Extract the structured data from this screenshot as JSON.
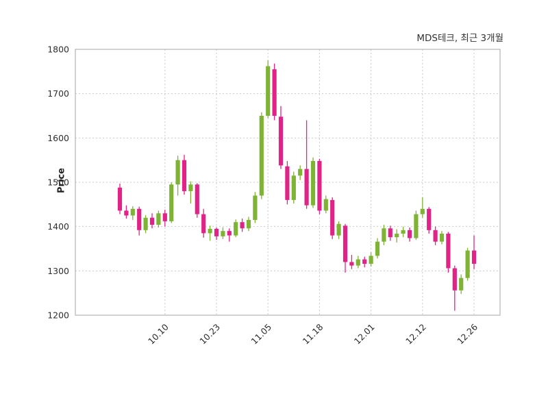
{
  "chart_data": {
    "type": "candlestick",
    "title": "MDS테크, 최근 3개월",
    "ylabel": "Price",
    "ylim": [
      1200,
      1800
    ],
    "yticks": [
      1200,
      1300,
      1400,
      1500,
      1600,
      1700,
      1800
    ],
    "xtick_labels": [
      "10.10",
      "10.23",
      "11.05",
      "11.18",
      "12.01",
      "12.12",
      "12.26"
    ],
    "xtick_indices": [
      7,
      15,
      23,
      31,
      39,
      47,
      55
    ],
    "grid": "dashed",
    "legend": "none",
    "up_color": "#7fb335",
    "down_color": "#e02487",
    "candles_format": [
      "open",
      "high",
      "low",
      "close"
    ],
    "candles": [
      [
        1488,
        1497,
        1428,
        1436
      ],
      [
        1436,
        1448,
        1418,
        1425
      ],
      [
        1425,
        1446,
        1415,
        1440
      ],
      [
        1440,
        1445,
        1380,
        1392
      ],
      [
        1392,
        1426,
        1385,
        1420
      ],
      [
        1420,
        1430,
        1396,
        1404
      ],
      [
        1404,
        1436,
        1398,
        1430
      ],
      [
        1430,
        1438,
        1400,
        1412
      ],
      [
        1412,
        1500,
        1408,
        1495
      ],
      [
        1495,
        1560,
        1470,
        1550
      ],
      [
        1550,
        1562,
        1472,
        1480
      ],
      [
        1480,
        1502,
        1452,
        1495
      ],
      [
        1495,
        1498,
        1420,
        1428
      ],
      [
        1428,
        1440,
        1375,
        1385
      ],
      [
        1385,
        1402,
        1368,
        1395
      ],
      [
        1395,
        1398,
        1370,
        1378
      ],
      [
        1378,
        1398,
        1372,
        1390
      ],
      [
        1390,
        1396,
        1366,
        1380
      ],
      [
        1380,
        1416,
        1376,
        1410
      ],
      [
        1410,
        1418,
        1388,
        1396
      ],
      [
        1396,
        1422,
        1390,
        1415
      ],
      [
        1415,
        1478,
        1408,
        1470
      ],
      [
        1470,
        1658,
        1462,
        1650
      ],
      [
        1650,
        1775,
        1645,
        1762
      ],
      [
        1755,
        1768,
        1640,
        1650
      ],
      [
        1648,
        1672,
        1530,
        1538
      ],
      [
        1536,
        1548,
        1450,
        1460
      ],
      [
        1460,
        1524,
        1452,
        1515
      ],
      [
        1515,
        1538,
        1505,
        1530
      ],
      [
        1530,
        1640,
        1440,
        1448
      ],
      [
        1448,
        1556,
        1442,
        1548
      ],
      [
        1548,
        1553,
        1428,
        1436
      ],
      [
        1436,
        1470,
        1430,
        1462
      ],
      [
        1460,
        1466,
        1372,
        1380
      ],
      [
        1380,
        1412,
        1372,
        1406
      ],
      [
        1402,
        1406,
        1296,
        1320
      ],
      [
        1320,
        1336,
        1304,
        1312
      ],
      [
        1312,
        1334,
        1306,
        1326
      ],
      [
        1326,
        1332,
        1308,
        1316
      ],
      [
        1316,
        1342,
        1310,
        1334
      ],
      [
        1334,
        1374,
        1328,
        1366
      ],
      [
        1366,
        1404,
        1358,
        1396
      ],
      [
        1396,
        1402,
        1368,
        1376
      ],
      [
        1376,
        1394,
        1364,
        1384
      ],
      [
        1384,
        1400,
        1376,
        1392
      ],
      [
        1392,
        1398,
        1366,
        1374
      ],
      [
        1374,
        1436,
        1370,
        1428
      ],
      [
        1428,
        1466,
        1420,
        1440
      ],
      [
        1440,
        1444,
        1384,
        1392
      ],
      [
        1392,
        1400,
        1358,
        1366
      ],
      [
        1366,
        1390,
        1360,
        1384
      ],
      [
        1384,
        1388,
        1296,
        1306
      ],
      [
        1306,
        1312,
        1210,
        1256
      ],
      [
        1256,
        1292,
        1248,
        1284
      ],
      [
        1284,
        1352,
        1278,
        1346
      ],
      [
        1346,
        1380,
        1304,
        1316
      ]
    ]
  }
}
